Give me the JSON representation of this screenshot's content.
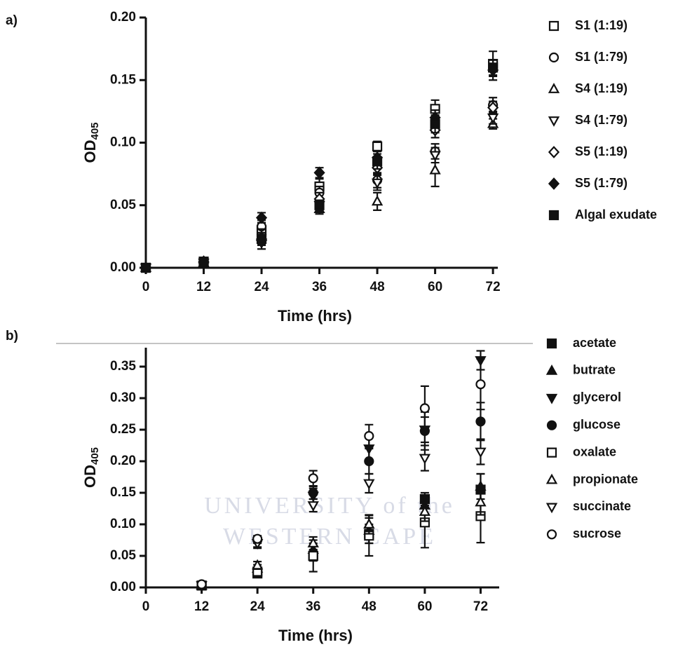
{
  "watermark": {
    "line1": "UNIVERSITY of the",
    "line2": "WESTERN CAPE"
  },
  "chart_data": [
    {
      "type": "scatter",
      "panel_label": "a)",
      "xlabel": "Time (hrs)",
      "ylabel": "OD",
      "ylabel_sub": "405",
      "x": [
        0,
        12,
        24,
        36,
        48,
        60,
        72
      ],
      "xlim": [
        0,
        73
      ],
      "xticks": [
        0,
        12,
        24,
        36,
        48,
        60,
        72
      ],
      "ylim": [
        0,
        0.2
      ],
      "yticks": [
        {
          "value": 0,
          "label": "0.00"
        },
        {
          "value": 0.05,
          "label": "0.05"
        },
        {
          "value": 0.1,
          "label": "0.10"
        },
        {
          "value": 0.15,
          "label": "0.15"
        },
        {
          "value": 0.2,
          "label": "0.20"
        }
      ],
      "series": [
        {
          "name": "S1 (1:19)",
          "marker": "square",
          "filled": false,
          "color": "#111111",
          "values": [
            0,
            0.004,
            0.03,
            0.065,
            0.097,
            0.127,
            0.163
          ],
          "errors": [
            0.001,
            0.001,
            0.006,
            0.006,
            0.004,
            0.007,
            0.01
          ]
        },
        {
          "name": "S1 (1:79)",
          "marker": "circle",
          "filled": false,
          "color": "#111111",
          "values": [
            0,
            0.004,
            0.033,
            0.06,
            0.07,
            0.093,
            0.13
          ],
          "errors": [
            0.001,
            0.001,
            0.005,
            0.005,
            0.006,
            0.006,
            0.006
          ]
        },
        {
          "name": "S4 (1:19)",
          "marker": "triangle-up",
          "filled": false,
          "color": "#111111",
          "values": [
            0,
            0.004,
            0.025,
            0.047,
            0.053,
            0.078,
            0.115
          ],
          "errors": [
            0.001,
            0.001,
            0.006,
            0.004,
            0.007,
            0.013,
            0.004
          ]
        },
        {
          "name": "S4 (1:79)",
          "marker": "triangle-down",
          "filled": false,
          "color": "#111111",
          "values": [
            0,
            0.004,
            0.02,
            0.05,
            0.068,
            0.09,
            0.12
          ],
          "errors": [
            0.001,
            0.001,
            0.005,
            0.005,
            0.006,
            0.006,
            0.005
          ]
        },
        {
          "name": "S5 (1:19)",
          "marker": "diamond",
          "filled": false,
          "color": "#111111",
          "values": [
            0,
            0.004,
            0.022,
            0.055,
            0.08,
            0.11,
            0.128
          ],
          "errors": [
            0.001,
            0.001,
            0.004,
            0.005,
            0.005,
            0.006,
            0.005
          ]
        },
        {
          "name": "S5 (1:79)",
          "marker": "diamond",
          "filled": true,
          "color": "#111111",
          "values": [
            0,
            0.005,
            0.04,
            0.076,
            0.088,
            0.12,
            0.158
          ],
          "errors": [
            0.001,
            0.001,
            0.004,
            0.004,
            0.005,
            0.006,
            0.008
          ]
        },
        {
          "name": "Algal exudate",
          "marker": "square",
          "filled": true,
          "color": "#111111",
          "values": [
            0,
            0.005,
            0.023,
            0.05,
            0.085,
            0.115,
            0.16
          ],
          "errors": [
            0.001,
            0.001,
            0.005,
            0.004,
            0.006,
            0.007,
            0.006
          ]
        }
      ]
    },
    {
      "type": "scatter",
      "panel_label": "b)",
      "xlabel": "Time (hrs)",
      "ylabel": "OD",
      "ylabel_sub": "405",
      "x": [
        12,
        24,
        36,
        48,
        60,
        72
      ],
      "xlim": [
        0,
        76
      ],
      "xticks": [
        0,
        12,
        24,
        36,
        48,
        60,
        72
      ],
      "ylim": [
        0,
        0.38
      ],
      "yticks": [
        {
          "value": 0,
          "label": "0.00"
        },
        {
          "value": 0.05,
          "label": "0.05"
        },
        {
          "value": 0.1,
          "label": "0.10"
        },
        {
          "value": 0.15,
          "label": "0.15"
        },
        {
          "value": 0.2,
          "label": "0.20"
        },
        {
          "value": 0.25,
          "label": "0.25"
        },
        {
          "value": 0.3,
          "label": "0.30"
        },
        {
          "value": 0.35,
          "label": "0.35"
        }
      ],
      "series": [
        {
          "name": "acetate",
          "marker": "square",
          "filled": true,
          "color": "#111111",
          "values": [
            0.003,
            0.022,
            0.05,
            0.085,
            0.14,
            0.155
          ],
          "errors": [
            0.002,
            0.006,
            0.008,
            0.015,
            0.01,
            0.025
          ]
        },
        {
          "name": "butrate",
          "marker": "triangle-up",
          "filled": true,
          "color": "#111111",
          "values": [
            0.003,
            0.03,
            0.06,
            0.09,
            0.13,
            0.16
          ],
          "errors": [
            0.002,
            0.006,
            0.01,
            0.02,
            0.015,
            0.02
          ]
        },
        {
          "name": "glycerol",
          "marker": "triangle-down",
          "filled": true,
          "color": "#111111",
          "values": [
            0.003,
            0.07,
            0.145,
            0.22,
            0.25,
            0.36
          ],
          "errors": [
            0.002,
            0.008,
            0.012,
            0.02,
            0.02,
            0.015
          ]
        },
        {
          "name": "glucose",
          "marker": "circle",
          "filled": true,
          "color": "#111111",
          "values": [
            0.003,
            0.075,
            0.15,
            0.2,
            0.248,
            0.263
          ],
          "errors": [
            0.002,
            0.005,
            0.01,
            0.02,
            0.03,
            0.03
          ]
        },
        {
          "name": "oxalate",
          "marker": "square",
          "filled": false,
          "color": "#111111",
          "values": [
            0.003,
            0.025,
            0.05,
            0.082,
            0.103,
            0.113
          ],
          "errors": [
            0.002,
            0.006,
            0.025,
            0.032,
            0.04,
            0.042
          ]
        },
        {
          "name": "propionate",
          "marker": "triangle-up",
          "filled": false,
          "color": "#111111",
          "values": [
            0.003,
            0.035,
            0.07,
            0.1,
            0.12,
            0.135
          ],
          "errors": [
            0.002,
            0.006,
            0.01,
            0.015,
            0.015,
            0.02
          ]
        },
        {
          "name": "succinate",
          "marker": "triangle-down",
          "filled": false,
          "color": "#111111",
          "values": [
            0.003,
            0.07,
            0.13,
            0.165,
            0.205,
            0.215
          ],
          "errors": [
            0.002,
            0.006,
            0.01,
            0.015,
            0.02,
            0.02
          ]
        },
        {
          "name": "sucrose",
          "marker": "circle",
          "filled": false,
          "color": "#111111",
          "values": [
            0.005,
            0.077,
            0.173,
            0.24,
            0.284,
            0.322
          ],
          "errors": [
            0.002,
            0.005,
            0.012,
            0.018,
            0.035,
            0.04
          ]
        }
      ]
    }
  ]
}
